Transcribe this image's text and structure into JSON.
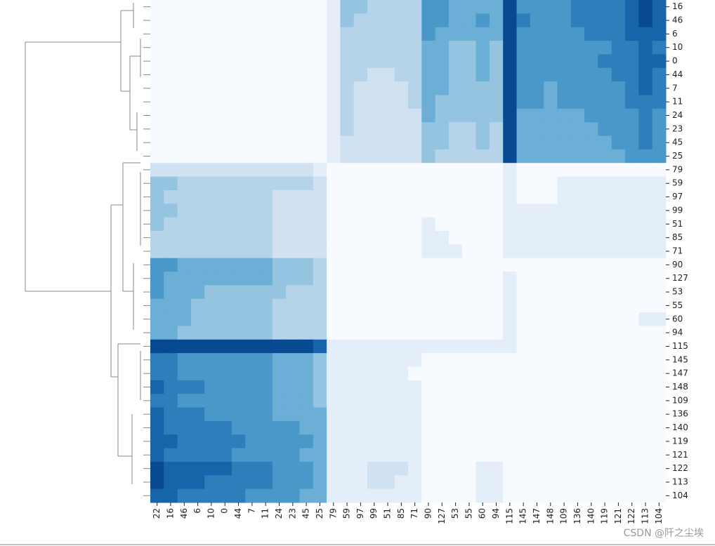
{
  "chart_data": {
    "type": "heatmap",
    "rows": [
      "16",
      "46",
      "6",
      "10",
      "0",
      "44",
      "7",
      "11",
      "24",
      "23",
      "45",
      "25",
      "79",
      "59",
      "97",
      "99",
      "51",
      "85",
      "71",
      "90",
      "127",
      "53",
      "55",
      "60",
      "94",
      "115",
      "145",
      "147",
      "148",
      "109",
      "136",
      "140",
      "119",
      "121",
      "122",
      "113",
      "104"
    ],
    "columns": [
      "22",
      "16",
      "46",
      "6",
      "10",
      "0",
      "44",
      "7",
      "11",
      "24",
      "23",
      "45",
      "25",
      "79",
      "59",
      "97",
      "99",
      "51",
      "85",
      "71",
      "90",
      "127",
      "53",
      "55",
      "60",
      "94",
      "115",
      "145",
      "147",
      "148",
      "109",
      "136",
      "140",
      "119",
      "121",
      "122",
      "113",
      "104"
    ],
    "values": [
      [
        0,
        0,
        0,
        0,
        0,
        0,
        0,
        0,
        0,
        0,
        0,
        0,
        0,
        0.1,
        0.4,
        0.4,
        0.3,
        0.3,
        0.3,
        0.3,
        0.6,
        0.6,
        0.5,
        0.5,
        0.5,
        0.5,
        0.9,
        0.6,
        0.6,
        0.6,
        0.6,
        0.7,
        0.7,
        0.7,
        0.7,
        0.8,
        0.9,
        0.8
      ],
      [
        0,
        0,
        0,
        0,
        0,
        0,
        0,
        0,
        0,
        0,
        0,
        0,
        0,
        0.1,
        0.4,
        0.3,
        0.3,
        0.3,
        0.3,
        0.3,
        0.6,
        0.6,
        0.5,
        0.5,
        0.6,
        0.5,
        0.9,
        0.7,
        0.6,
        0.6,
        0.6,
        0.7,
        0.7,
        0.7,
        0.7,
        0.8,
        0.9,
        0.8
      ],
      [
        0,
        0,
        0,
        0,
        0,
        0,
        0,
        0,
        0,
        0,
        0,
        0,
        0,
        0.1,
        0.3,
        0.3,
        0.3,
        0.3,
        0.3,
        0.3,
        0.6,
        0.5,
        0.5,
        0.5,
        0.5,
        0.5,
        0.9,
        0.6,
        0.6,
        0.6,
        0.6,
        0.6,
        0.7,
        0.7,
        0.7,
        0.8,
        0.8,
        0.8
      ],
      [
        0,
        0,
        0,
        0,
        0,
        0,
        0,
        0,
        0,
        0,
        0,
        0,
        0,
        0.1,
        0.3,
        0.3,
        0.3,
        0.3,
        0.3,
        0.3,
        0.5,
        0.5,
        0.4,
        0.4,
        0.5,
        0.4,
        0.9,
        0.6,
        0.6,
        0.6,
        0.6,
        0.6,
        0.6,
        0.6,
        0.7,
        0.7,
        0.8,
        0.7
      ],
      [
        0,
        0,
        0,
        0,
        0,
        0,
        0,
        0,
        0,
        0,
        0,
        0,
        0,
        0.1,
        0.3,
        0.3,
        0.3,
        0.3,
        0.3,
        0.3,
        0.5,
        0.5,
        0.4,
        0.4,
        0.5,
        0.4,
        0.9,
        0.6,
        0.6,
        0.6,
        0.6,
        0.6,
        0.6,
        0.7,
        0.7,
        0.7,
        0.8,
        0.8
      ],
      [
        0,
        0,
        0,
        0,
        0,
        0,
        0,
        0,
        0,
        0,
        0,
        0,
        0,
        0.1,
        0.3,
        0.3,
        0.2,
        0.2,
        0.3,
        0.3,
        0.5,
        0.5,
        0.4,
        0.4,
        0.5,
        0.4,
        0.9,
        0.6,
        0.6,
        0.6,
        0.6,
        0.6,
        0.6,
        0.6,
        0.7,
        0.7,
        0.8,
        0.7
      ],
      [
        0,
        0,
        0,
        0,
        0,
        0,
        0,
        0,
        0,
        0,
        0,
        0,
        0,
        0.1,
        0.3,
        0.2,
        0.2,
        0.2,
        0.2,
        0.3,
        0.5,
        0.5,
        0.4,
        0.4,
        0.4,
        0.4,
        0.9,
        0.6,
        0.6,
        0.5,
        0.6,
        0.6,
        0.6,
        0.6,
        0.6,
        0.7,
        0.8,
        0.7
      ],
      [
        0,
        0,
        0,
        0,
        0,
        0,
        0,
        0,
        0,
        0,
        0,
        0,
        0,
        0.1,
        0.3,
        0.2,
        0.2,
        0.2,
        0.2,
        0.3,
        0.5,
        0.4,
        0.4,
        0.4,
        0.4,
        0.4,
        0.9,
        0.6,
        0.6,
        0.5,
        0.6,
        0.6,
        0.6,
        0.6,
        0.6,
        0.7,
        0.7,
        0.7
      ],
      [
        0,
        0,
        0,
        0,
        0,
        0,
        0,
        0,
        0,
        0,
        0,
        0,
        0,
        0.1,
        0.3,
        0.2,
        0.2,
        0.2,
        0.2,
        0.2,
        0.5,
        0.4,
        0.4,
        0.4,
        0.4,
        0.4,
        0.9,
        0.5,
        0.5,
        0.5,
        0.5,
        0.5,
        0.6,
        0.6,
        0.6,
        0.6,
        0.7,
        0.6
      ],
      [
        0,
        0,
        0,
        0,
        0,
        0,
        0,
        0,
        0,
        0,
        0,
        0,
        0,
        0.1,
        0.3,
        0.2,
        0.2,
        0.2,
        0.2,
        0.2,
        0.4,
        0.4,
        0.3,
        0.3,
        0.4,
        0.3,
        0.9,
        0.5,
        0.5,
        0.5,
        0.5,
        0.5,
        0.5,
        0.6,
        0.6,
        0.6,
        0.7,
        0.6
      ],
      [
        0,
        0,
        0,
        0,
        0,
        0,
        0,
        0,
        0,
        0,
        0,
        0,
        0,
        0.1,
        0.2,
        0.2,
        0.2,
        0.2,
        0.2,
        0.2,
        0.4,
        0.4,
        0.3,
        0.3,
        0.4,
        0.3,
        0.9,
        0.5,
        0.5,
        0.5,
        0.5,
        0.5,
        0.5,
        0.5,
        0.6,
        0.6,
        0.7,
        0.6
      ],
      [
        0,
        0,
        0,
        0,
        0,
        0,
        0,
        0,
        0,
        0,
        0,
        0,
        0,
        0.1,
        0.2,
        0.2,
        0.2,
        0.2,
        0.2,
        0.2,
        0.4,
        0.3,
        0.3,
        0.3,
        0.3,
        0.3,
        0.9,
        0.5,
        0.5,
        0.5,
        0.5,
        0.5,
        0.5,
        0.5,
        0.5,
        0.6,
        0.6,
        0.6
      ],
      [
        0.2,
        0.2,
        0.2,
        0.2,
        0.2,
        0.2,
        0.2,
        0.2,
        0.2,
        0.2,
        0.2,
        0.2,
        0.1,
        0,
        0,
        0,
        0,
        0,
        0,
        0,
        0,
        0,
        0,
        0,
        0,
        0,
        0.1,
        0,
        0,
        0,
        0,
        0,
        0,
        0,
        0,
        0,
        0,
        0
      ],
      [
        0.4,
        0.4,
        0.3,
        0.3,
        0.3,
        0.3,
        0.3,
        0.3,
        0.3,
        0.3,
        0.3,
        0.3,
        0.2,
        0,
        0,
        0,
        0,
        0,
        0,
        0,
        0,
        0,
        0,
        0,
        0,
        0,
        0.1,
        0,
        0,
        0,
        0.1,
        0.1,
        0.1,
        0.1,
        0.1,
        0.1,
        0.1,
        0.1
      ],
      [
        0.4,
        0.3,
        0.3,
        0.3,
        0.3,
        0.3,
        0.3,
        0.3,
        0.3,
        0.2,
        0.2,
        0.2,
        0.2,
        0,
        0,
        0,
        0,
        0,
        0,
        0,
        0,
        0,
        0,
        0,
        0,
        0,
        0.1,
        0,
        0,
        0,
        0.1,
        0.1,
        0.1,
        0.1,
        0.1,
        0.1,
        0.1,
        0.1
      ],
      [
        0.4,
        0.4,
        0.3,
        0.3,
        0.3,
        0.3,
        0.3,
        0.3,
        0.3,
        0.2,
        0.2,
        0.2,
        0.2,
        0,
        0,
        0,
        0,
        0,
        0,
        0,
        0,
        0,
        0,
        0,
        0,
        0,
        0.1,
        0.1,
        0.1,
        0.1,
        0.1,
        0.1,
        0.1,
        0.1,
        0.1,
        0.1,
        0.1,
        0.1
      ],
      [
        0.4,
        0.3,
        0.3,
        0.3,
        0.3,
        0.3,
        0.3,
        0.3,
        0.3,
        0.2,
        0.2,
        0.2,
        0.2,
        0,
        0,
        0,
        0,
        0,
        0,
        0,
        0.1,
        0,
        0,
        0,
        0,
        0,
        0.1,
        0.1,
        0.1,
        0.1,
        0.1,
        0.1,
        0.1,
        0.1,
        0.1,
        0.1,
        0.1,
        0.1
      ],
      [
        0.3,
        0.3,
        0.3,
        0.3,
        0.3,
        0.3,
        0.3,
        0.3,
        0.3,
        0.2,
        0.2,
        0.2,
        0.2,
        0,
        0,
        0,
        0,
        0,
        0,
        0,
        0.1,
        0.1,
        0,
        0,
        0,
        0,
        0.1,
        0.1,
        0.1,
        0.1,
        0.1,
        0.1,
        0.1,
        0.1,
        0.1,
        0.1,
        0.1,
        0.1
      ],
      [
        0.3,
        0.3,
        0.3,
        0.3,
        0.3,
        0.3,
        0.3,
        0.3,
        0.3,
        0.2,
        0.2,
        0.2,
        0.2,
        0,
        0,
        0,
        0,
        0,
        0,
        0,
        0.1,
        0.1,
        0.1,
        0,
        0,
        0,
        0.1,
        0.1,
        0.1,
        0.1,
        0.1,
        0.1,
        0.1,
        0.1,
        0.1,
        0.1,
        0.1,
        0.1
      ],
      [
        0.6,
        0.6,
        0.5,
        0.5,
        0.5,
        0.5,
        0.5,
        0.5,
        0.5,
        0.4,
        0.4,
        0.4,
        0.3,
        0,
        0,
        0,
        0,
        0,
        0,
        0,
        0,
        0,
        0,
        0,
        0,
        0,
        0,
        0,
        0,
        0,
        0,
        0,
        0,
        0,
        0,
        0,
        0,
        0
      ],
      [
        0.6,
        0.5,
        0.5,
        0.5,
        0.5,
        0.5,
        0.5,
        0.5,
        0.5,
        0.4,
        0.4,
        0.4,
        0.3,
        0,
        0,
        0,
        0,
        0,
        0,
        0,
        0,
        0,
        0,
        0,
        0,
        0,
        0.1,
        0,
        0,
        0,
        0,
        0,
        0,
        0,
        0,
        0,
        0,
        0
      ],
      [
        0.6,
        0.5,
        0.5,
        0.5,
        0.4,
        0.4,
        0.4,
        0.4,
        0.4,
        0.4,
        0.3,
        0.3,
        0.3,
        0,
        0,
        0,
        0,
        0,
        0,
        0,
        0,
        0,
        0,
        0,
        0,
        0,
        0.1,
        0,
        0,
        0,
        0,
        0,
        0,
        0,
        0,
        0,
        0,
        0
      ],
      [
        0.5,
        0.5,
        0.5,
        0.4,
        0.4,
        0.4,
        0.4,
        0.4,
        0.4,
        0.3,
        0.3,
        0.3,
        0.3,
        0,
        0,
        0,
        0,
        0,
        0,
        0,
        0,
        0,
        0,
        0,
        0,
        0,
        0.1,
        0,
        0,
        0,
        0,
        0,
        0,
        0,
        0,
        0,
        0,
        0
      ],
      [
        0.5,
        0.5,
        0.5,
        0.4,
        0.4,
        0.4,
        0.4,
        0.4,
        0.4,
        0.3,
        0.3,
        0.3,
        0.3,
        0,
        0,
        0,
        0,
        0,
        0,
        0,
        0,
        0,
        0,
        0,
        0,
        0,
        0.1,
        0,
        0,
        0,
        0,
        0,
        0,
        0,
        0,
        0,
        0.1,
        0.1
      ],
      [
        0.5,
        0.5,
        0.4,
        0.4,
        0.4,
        0.4,
        0.4,
        0.4,
        0.4,
        0.3,
        0.3,
        0.3,
        0.3,
        0,
        0,
        0,
        0,
        0,
        0,
        0,
        0,
        0,
        0,
        0,
        0,
        0,
        0.1,
        0,
        0,
        0,
        0,
        0,
        0,
        0,
        0,
        0,
        0,
        0
      ],
      [
        0.9,
        0.9,
        0.9,
        0.9,
        0.9,
        0.9,
        0.9,
        0.9,
        0.9,
        0.9,
        0.9,
        0.9,
        0.8,
        0.1,
        0.1,
        0.1,
        0.1,
        0.1,
        0.1,
        0.1,
        0.1,
        0.1,
        0.1,
        0.1,
        0.1,
        0.1,
        0.1,
        0,
        0,
        0,
        0,
        0,
        0,
        0,
        0,
        0,
        0,
        0
      ],
      [
        0.7,
        0.7,
        0.6,
        0.6,
        0.6,
        0.6,
        0.6,
        0.6,
        0.6,
        0.5,
        0.5,
        0.5,
        0.4,
        0.1,
        0.1,
        0.1,
        0.1,
        0.1,
        0.1,
        0.1,
        0,
        0,
        0,
        0,
        0,
        0,
        0,
        0,
        0,
        0,
        0,
        0,
        0,
        0,
        0,
        0,
        0,
        0
      ],
      [
        0.7,
        0.7,
        0.6,
        0.6,
        0.6,
        0.6,
        0.6,
        0.6,
        0.6,
        0.5,
        0.5,
        0.5,
        0.4,
        0.1,
        0.1,
        0.1,
        0.1,
        0.1,
        0.1,
        0,
        0,
        0,
        0,
        0,
        0,
        0,
        0,
        0,
        0,
        0,
        0,
        0,
        0,
        0,
        0,
        0,
        0,
        0
      ],
      [
        0.8,
        0.7,
        0.7,
        0.7,
        0.6,
        0.6,
        0.6,
        0.6,
        0.6,
        0.5,
        0.5,
        0.5,
        0.4,
        0.1,
        0.1,
        0.1,
        0.1,
        0.1,
        0.1,
        0.1,
        0,
        0,
        0,
        0,
        0,
        0,
        0,
        0,
        0,
        0,
        0,
        0,
        0,
        0,
        0,
        0,
        0,
        0
      ],
      [
        0.7,
        0.7,
        0.6,
        0.6,
        0.6,
        0.6,
        0.6,
        0.6,
        0.6,
        0.5,
        0.5,
        0.5,
        0.4,
        0.1,
        0.1,
        0.1,
        0.1,
        0.1,
        0.1,
        0.1,
        0,
        0,
        0,
        0,
        0,
        0,
        0,
        0,
        0,
        0,
        0,
        0,
        0,
        0,
        0,
        0,
        0,
        0
      ],
      [
        0.8,
        0.7,
        0.7,
        0.7,
        0.6,
        0.6,
        0.6,
        0.6,
        0.6,
        0.5,
        0.5,
        0.5,
        0.5,
        0.1,
        0.1,
        0.1,
        0.1,
        0.1,
        0.1,
        0.1,
        0,
        0,
        0,
        0,
        0,
        0,
        0,
        0,
        0,
        0,
        0,
        0,
        0,
        0,
        0,
        0,
        0,
        0
      ],
      [
        0.8,
        0.7,
        0.7,
        0.7,
        0.7,
        0.7,
        0.6,
        0.6,
        0.6,
        0.6,
        0.6,
        0.5,
        0.5,
        0.1,
        0.1,
        0.1,
        0.1,
        0.1,
        0.1,
        0.1,
        0,
        0,
        0,
        0,
        0,
        0,
        0,
        0,
        0,
        0,
        0,
        0,
        0,
        0,
        0,
        0,
        0,
        0
      ],
      [
        0.8,
        0.8,
        0.7,
        0.7,
        0.7,
        0.7,
        0.7,
        0.6,
        0.6,
        0.6,
        0.6,
        0.6,
        0.5,
        0.1,
        0.1,
        0.1,
        0.1,
        0.1,
        0.1,
        0.1,
        0,
        0,
        0,
        0,
        0,
        0,
        0,
        0,
        0,
        0,
        0,
        0,
        0,
        0,
        0,
        0,
        0,
        0
      ],
      [
        0.8,
        0.7,
        0.7,
        0.7,
        0.7,
        0.7,
        0.6,
        0.6,
        0.6,
        0.6,
        0.6,
        0.5,
        0.5,
        0.1,
        0.1,
        0.1,
        0.1,
        0.1,
        0.1,
        0.1,
        0,
        0,
        0,
        0,
        0,
        0,
        0,
        0,
        0,
        0,
        0,
        0,
        0,
        0,
        0,
        0,
        0,
        0
      ],
      [
        0.9,
        0.8,
        0.8,
        0.8,
        0.8,
        0.8,
        0.7,
        0.7,
        0.7,
        0.6,
        0.6,
        0.6,
        0.5,
        0.1,
        0.1,
        0.1,
        0.2,
        0.2,
        0.2,
        0.1,
        0,
        0,
        0,
        0,
        0.1,
        0.1,
        0,
        0,
        0,
        0,
        0,
        0,
        0,
        0,
        0,
        0,
        0,
        0
      ],
      [
        0.9,
        0.8,
        0.8,
        0.8,
        0.7,
        0.7,
        0.7,
        0.7,
        0.7,
        0.6,
        0.6,
        0.6,
        0.5,
        0.1,
        0.1,
        0.1,
        0.2,
        0.2,
        0.1,
        0.1,
        0,
        0,
        0,
        0,
        0.1,
        0.1,
        0,
        0,
        0,
        0,
        0,
        0,
        0,
        0,
        0,
        0,
        0,
        0
      ],
      [
        0.8,
        0.8,
        0.7,
        0.7,
        0.7,
        0.7,
        0.7,
        0.6,
        0.6,
        0.6,
        0.6,
        0.5,
        0.5,
        0.1,
        0.1,
        0.1,
        0.1,
        0.1,
        0.1,
        0.1,
        0,
        0,
        0,
        0,
        0.1,
        0.1,
        0,
        0,
        0,
        0,
        0,
        0,
        0,
        0,
        0,
        0,
        0,
        0
      ]
    ],
    "colormap": [
      "#f7fbff",
      "#deebf7",
      "#c6dbef",
      "#9ecae1",
      "#6baed6",
      "#4292c6",
      "#2171b5",
      "#08519c",
      "#08306b"
    ]
  },
  "watermark": "CSDN @阡之尘埃"
}
